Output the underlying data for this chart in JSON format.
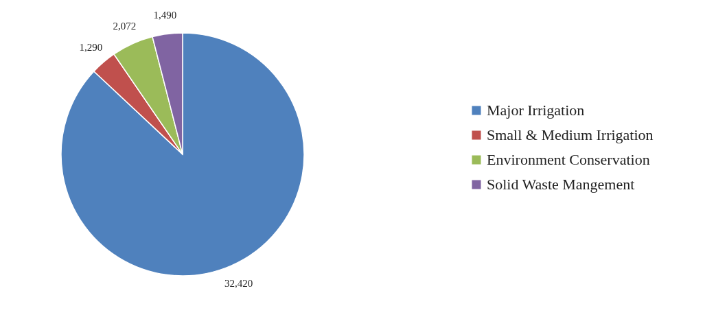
{
  "chart_data": {
    "type": "pie",
    "categories": [
      "Major Irrigation",
      "Small & Medium Irrigation",
      "Environment Conservation",
      "Solid Waste Mangement"
    ],
    "values": [
      32420,
      1290,
      2072,
      1490
    ],
    "colors": [
      "#4f81bd",
      "#c0504d",
      "#9bbb59",
      "#8064a2"
    ],
    "value_labels": [
      "32,420",
      "1,290",
      "2,072",
      "1,490"
    ],
    "legend": "right"
  }
}
